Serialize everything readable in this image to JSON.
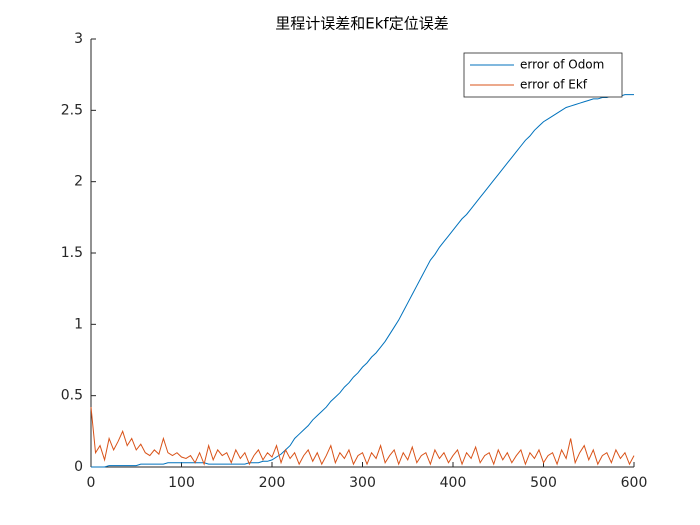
{
  "chart_data": {
    "type": "line",
    "title": "里程计误差和Ekf定位误差",
    "x": [
      0,
      5,
      10,
      15,
      20,
      25,
      30,
      35,
      40,
      45,
      50,
      55,
      60,
      65,
      70,
      75,
      80,
      85,
      90,
      95,
      100,
      105,
      110,
      115,
      120,
      125,
      130,
      135,
      140,
      145,
      150,
      155,
      160,
      165,
      170,
      175,
      180,
      185,
      190,
      195,
      200,
      205,
      210,
      215,
      220,
      225,
      230,
      235,
      240,
      245,
      250,
      255,
      260,
      265,
      270,
      275,
      280,
      285,
      290,
      295,
      300,
      305,
      310,
      315,
      320,
      325,
      330,
      335,
      340,
      345,
      350,
      355,
      360,
      365,
      370,
      375,
      380,
      385,
      390,
      395,
      400,
      405,
      410,
      415,
      420,
      425,
      430,
      435,
      440,
      445,
      450,
      455,
      460,
      465,
      470,
      475,
      480,
      485,
      490,
      495,
      500,
      505,
      510,
      515,
      520,
      525,
      530,
      535,
      540,
      545,
      550,
      555,
      560,
      565,
      570,
      575,
      580,
      585,
      590,
      595,
      600
    ],
    "series": [
      {
        "name": "error of Odom",
        "color": "#0072bd",
        "values": [
          0,
          0,
          0,
          0,
          0.01,
          0.01,
          0.01,
          0.01,
          0.01,
          0.01,
          0.01,
          0.02,
          0.02,
          0.02,
          0.02,
          0.02,
          0.02,
          0.03,
          0.03,
          0.03,
          0.03,
          0.03,
          0.03,
          0.03,
          0.03,
          0.03,
          0.02,
          0.02,
          0.02,
          0.02,
          0.02,
          0.02,
          0.02,
          0.02,
          0.02,
          0.03,
          0.03,
          0.03,
          0.04,
          0.04,
          0.05,
          0.07,
          0.09,
          0.12,
          0.15,
          0.2,
          0.23,
          0.26,
          0.29,
          0.33,
          0.36,
          0.39,
          0.42,
          0.46,
          0.49,
          0.52,
          0.56,
          0.59,
          0.63,
          0.66,
          0.7,
          0.73,
          0.77,
          0.8,
          0.84,
          0.88,
          0.93,
          0.98,
          1.03,
          1.09,
          1.15,
          1.21,
          1.27,
          1.33,
          1.39,
          1.45,
          1.49,
          1.54,
          1.58,
          1.62,
          1.66,
          1.7,
          1.74,
          1.77,
          1.81,
          1.85,
          1.89,
          1.93,
          1.97,
          2.01,
          2.05,
          2.09,
          2.13,
          2.17,
          2.21,
          2.25,
          2.29,
          2.32,
          2.36,
          2.39,
          2.42,
          2.44,
          2.46,
          2.48,
          2.5,
          2.52,
          2.53,
          2.54,
          2.55,
          2.56,
          2.57,
          2.58,
          2.58,
          2.59,
          2.59,
          2.6,
          2.6,
          2.6,
          2.61,
          2.61,
          2.61
        ]
      },
      {
        "name": "error of Ekf",
        "color": "#d95319",
        "values": [
          0.42,
          0.1,
          0.15,
          0.05,
          0.2,
          0.12,
          0.18,
          0.25,
          0.15,
          0.2,
          0.12,
          0.16,
          0.1,
          0.08,
          0.12,
          0.09,
          0.2,
          0.1,
          0.08,
          0.1,
          0.07,
          0.06,
          0.08,
          0.03,
          0.1,
          0.02,
          0.15,
          0.05,
          0.12,
          0.08,
          0.1,
          0.03,
          0.12,
          0.06,
          0.1,
          0.02,
          0.08,
          0.12,
          0.05,
          0.1,
          0.07,
          0.15,
          0.03,
          0.12,
          0.06,
          0.1,
          0.02,
          0.08,
          0.12,
          0.04,
          0.1,
          0.02,
          0.08,
          0.15,
          0.03,
          0.1,
          0.06,
          0.12,
          0.02,
          0.08,
          0.1,
          0.02,
          0.1,
          0.06,
          0.15,
          0.03,
          0.08,
          0.12,
          0.02,
          0.1,
          0.05,
          0.14,
          0.03,
          0.08,
          0.1,
          0.02,
          0.12,
          0.06,
          0.1,
          0.03,
          0.08,
          0.12,
          0.02,
          0.1,
          0.06,
          0.14,
          0.03,
          0.08,
          0.1,
          0.02,
          0.12,
          0.05,
          0.1,
          0.03,
          0.08,
          0.12,
          0.02,
          0.1,
          0.06,
          0.12,
          0.03,
          0.08,
          0.1,
          0.02,
          0.12,
          0.06,
          0.2,
          0.03,
          0.1,
          0.15,
          0.05,
          0.12,
          0.02,
          0.08,
          0.1,
          0.03,
          0.12,
          0.06,
          0.1,
          0.02,
          0.08
        ]
      }
    ],
    "xlim": [
      0,
      600
    ],
    "xticks": [
      0,
      100,
      200,
      300,
      400,
      500,
      600
    ],
    "ylim": [
      0,
      3
    ],
    "yticks": [
      0,
      0.5,
      1,
      1.5,
      2,
      2.5,
      3
    ],
    "legend": "upper right"
  }
}
